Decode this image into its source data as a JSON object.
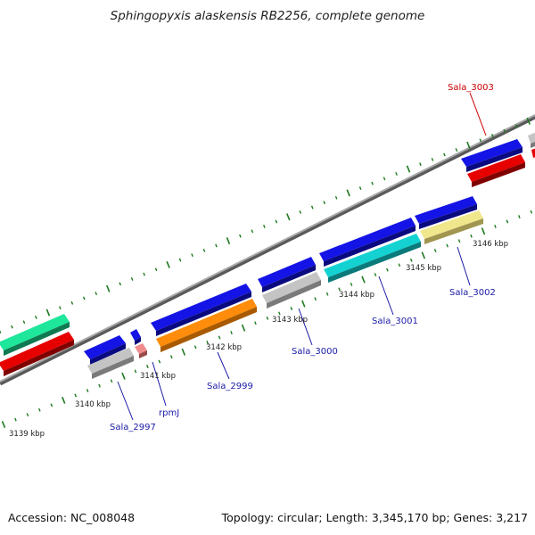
{
  "title": "Sphingopyxis alaskensis RB2256, complete genome",
  "footer": {
    "accession": "Accession: NC_008048",
    "summary": "Topology: circular; Length: 3,345,170 bp; Genes: 3,217"
  },
  "colors": {
    "backbone": "#8c8c8c",
    "tick": "#1f7a1f",
    "label_blue": "#1a1aa6",
    "label_red": "#cc0000",
    "cds_blue": "#1414e6",
    "gene_red": "#e60000",
    "gene_gray": "#c4c4c4",
    "gene_green": "#1ee69a",
    "gene_pink": "#f08c8c",
    "gene_orange": "#ff8c0a",
    "gene_cyan": "#14d2d2",
    "gene_khaki": "#f0e68c"
  },
  "tick_labels": [
    "3139 kbp",
    "3140 kbp",
    "3141 kbp",
    "3142 kbp",
    "3143 kbp",
    "3144 kbp",
    "3145 kbp",
    "3146 kbp"
  ],
  "gene_labels": [
    {
      "text": "Sala_2997",
      "color": "blue"
    },
    {
      "text": "rpmJ",
      "color": "blue"
    },
    {
      "text": "Sala_2999",
      "color": "blue"
    },
    {
      "text": "Sala_3000",
      "color": "blue"
    },
    {
      "text": "Sala_3001",
      "color": "blue"
    },
    {
      "text": "Sala_3002",
      "color": "blue"
    },
    {
      "text": "Sala_3003",
      "color": "red"
    }
  ],
  "features": [
    {
      "name": "gene-green-left",
      "track": "outer-row1",
      "color": "gene_green"
    },
    {
      "name": "gene-red-left",
      "track": "outer-row2",
      "color": "gene_red"
    },
    {
      "name": "cds-blue-2997",
      "track": "outer-row1",
      "color": "cds_blue"
    },
    {
      "name": "gene-gray-2997",
      "track": "outer-row2",
      "color": "gene_gray"
    },
    {
      "name": "cds-blue-rpmj",
      "track": "outer-row1",
      "color": "cds_blue"
    },
    {
      "name": "gene-pink-rpmj",
      "track": "outer-row2",
      "color": "gene_pink"
    },
    {
      "name": "cds-blue-2999",
      "track": "outer-row1",
      "color": "cds_blue"
    },
    {
      "name": "gene-orange-2999",
      "track": "outer-row2",
      "color": "gene_orange"
    },
    {
      "name": "cds-blue-3000",
      "track": "outer-row1",
      "color": "cds_blue"
    },
    {
      "name": "gene-gray-3000",
      "track": "outer-row2",
      "color": "gene_gray"
    },
    {
      "name": "cds-blue-3001",
      "track": "outer-row1",
      "color": "cds_blue"
    },
    {
      "name": "gene-cyan-3001",
      "track": "outer-row2",
      "color": "gene_cyan"
    },
    {
      "name": "cds-blue-3002",
      "track": "outer-row1",
      "color": "cds_blue"
    },
    {
      "name": "gene-khaki-3002",
      "track": "outer-row2",
      "color": "gene_khaki"
    },
    {
      "name": "cds-blue-3003",
      "track": "outer-row1",
      "color": "cds_blue"
    },
    {
      "name": "gene-red-3003",
      "track": "outer-row2",
      "color": "gene_red"
    },
    {
      "name": "gene-gray-edge",
      "track": "outer-row1",
      "color": "gene_gray"
    }
  ]
}
